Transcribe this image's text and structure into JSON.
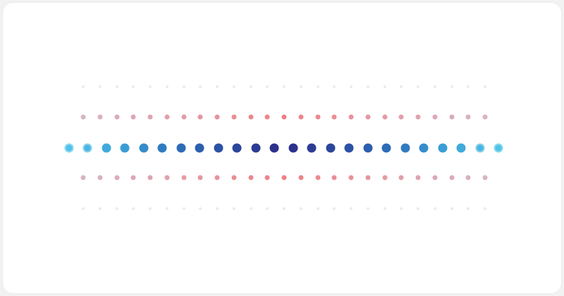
{
  "colors": {
    "background": "#ffffff",
    "page_background": "#f2f2f2",
    "main_row_gradient": [
      "#4fc3e8",
      "#3a9fd6",
      "#2c6fb8",
      "#2b4a9e",
      "#2e2a8a"
    ],
    "secondary_row_gradient": [
      "#d8b4c4",
      "#e39aa6",
      "#f07f85"
    ],
    "faint_row_color": "#eceaf0"
  },
  "rows": {
    "main_dot_count": 24,
    "secondary_dot_count": 25,
    "faint_dot_count": 25
  }
}
